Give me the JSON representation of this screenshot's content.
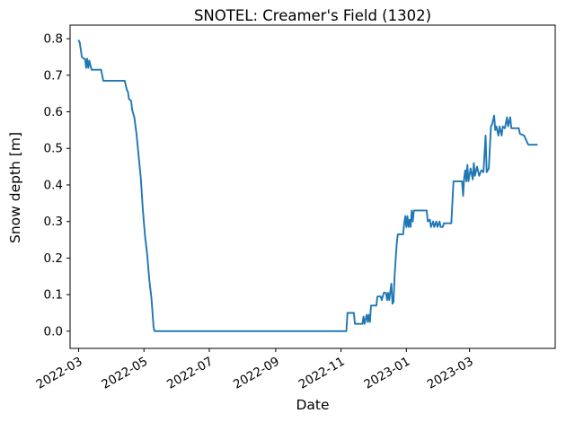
{
  "chart_data": {
    "type": "line",
    "title": "SNOTEL: Creamer's Field (1302)",
    "xlabel": "Date",
    "ylabel": "Snow depth [m]",
    "line_color": "#1f77b4",
    "background_color": "#ffffff",
    "grid": false,
    "legend": "none",
    "ylim": [
      -0.047,
      0.837
    ],
    "xlim": [
      "2022-02-21",
      "2023-05-20"
    ],
    "y_ticks": [
      {
        "value": 0.0,
        "label": "0.0"
      },
      {
        "value": 0.1,
        "label": "0.1"
      },
      {
        "value": 0.2,
        "label": "0.2"
      },
      {
        "value": 0.3,
        "label": "0.3"
      },
      {
        "value": 0.4,
        "label": "0.4"
      },
      {
        "value": 0.5,
        "label": "0.5"
      },
      {
        "value": 0.6,
        "label": "0.6"
      },
      {
        "value": 0.7,
        "label": "0.7"
      },
      {
        "value": 0.8,
        "label": "0.8"
      }
    ],
    "x_ticks": [
      {
        "date": "2022-03-01",
        "label": "2022-03"
      },
      {
        "date": "2022-05-01",
        "label": "2022-05"
      },
      {
        "date": "2022-07-01",
        "label": "2022-07"
      },
      {
        "date": "2022-09-01",
        "label": "2022-09"
      },
      {
        "date": "2022-11-01",
        "label": "2022-11"
      },
      {
        "date": "2023-01-01",
        "label": "2023-01"
      },
      {
        "date": "2023-03-01",
        "label": "2023-03"
      }
    ],
    "series": [
      {
        "name": "Snow depth",
        "points": [
          [
            "2022-03-01",
            0.795
          ],
          [
            "2022-03-02",
            0.79
          ],
          [
            "2022-03-04",
            0.75
          ],
          [
            "2022-03-06",
            0.745
          ],
          [
            "2022-03-07",
            0.745
          ],
          [
            "2022-03-08",
            0.72
          ],
          [
            "2022-03-09",
            0.745
          ],
          [
            "2022-03-10",
            0.72
          ],
          [
            "2022-03-11",
            0.74
          ],
          [
            "2022-03-13",
            0.715
          ],
          [
            "2022-03-22",
            0.715
          ],
          [
            "2022-03-24",
            0.685
          ],
          [
            "2022-04-13",
            0.685
          ],
          [
            "2022-04-15",
            0.66
          ],
          [
            "2022-04-16",
            0.655
          ],
          [
            "2022-04-17",
            0.635
          ],
          [
            "2022-04-19",
            0.63
          ],
          [
            "2022-04-20",
            0.605
          ],
          [
            "2022-04-22",
            0.585
          ],
          [
            "2022-04-24",
            0.54
          ],
          [
            "2022-04-26",
            0.48
          ],
          [
            "2022-04-28",
            0.42
          ],
          [
            "2022-04-30",
            0.33
          ],
          [
            "2022-05-02",
            0.26
          ],
          [
            "2022-05-04",
            0.21
          ],
          [
            "2022-05-06",
            0.14
          ],
          [
            "2022-05-08",
            0.09
          ],
          [
            "2022-05-10",
            0.01
          ],
          [
            "2022-05-11",
            0
          ],
          [
            "2022-11-06",
            0
          ],
          [
            "2022-11-07",
            0.05
          ],
          [
            "2022-11-13",
            0.05
          ],
          [
            "2022-11-14",
            0.02
          ],
          [
            "2022-11-21",
            0.02
          ],
          [
            "2022-11-22",
            0.04
          ],
          [
            "2022-11-23",
            0.02
          ],
          [
            "2022-11-25",
            0.045
          ],
          [
            "2022-11-26",
            0.025
          ],
          [
            "2022-11-27",
            0.045
          ],
          [
            "2022-11-28",
            0.025
          ],
          [
            "2022-11-29",
            0.07
          ],
          [
            "2022-12-04",
            0.07
          ],
          [
            "2022-12-05",
            0.095
          ],
          [
            "2022-12-08",
            0.095
          ],
          [
            "2022-12-09",
            0.085
          ],
          [
            "2022-12-11",
            0.105
          ],
          [
            "2022-12-13",
            0.105
          ],
          [
            "2022-12-14",
            0.085
          ],
          [
            "2022-12-15",
            0.105
          ],
          [
            "2022-12-16",
            0.085
          ],
          [
            "2022-12-18",
            0.13
          ],
          [
            "2022-12-19",
            0.075
          ],
          [
            "2022-12-20",
            0.08
          ],
          [
            "2022-12-21",
            0.15
          ],
          [
            "2022-12-23",
            0.24
          ],
          [
            "2022-12-24",
            0.265
          ],
          [
            "2022-12-29",
            0.265
          ],
          [
            "2022-12-30",
            0.295
          ],
          [
            "2022-12-31",
            0.315
          ],
          [
            "2023-01-01",
            0.285
          ],
          [
            "2023-01-02",
            0.315
          ],
          [
            "2023-01-03",
            0.285
          ],
          [
            "2023-01-04",
            0.305
          ],
          [
            "2023-01-05",
            0.285
          ],
          [
            "2023-01-06",
            0.33
          ],
          [
            "2023-01-07",
            0.3
          ],
          [
            "2023-01-08",
            0.33
          ],
          [
            "2023-01-10",
            0.33
          ],
          [
            "2023-01-20",
            0.33
          ],
          [
            "2023-01-21",
            0.3
          ],
          [
            "2023-01-23",
            0.305
          ],
          [
            "2023-01-24",
            0.285
          ],
          [
            "2023-01-26",
            0.3
          ],
          [
            "2023-01-27",
            0.285
          ],
          [
            "2023-01-29",
            0.3
          ],
          [
            "2023-01-30",
            0.285
          ],
          [
            "2023-02-01",
            0.3
          ],
          [
            "2023-02-02",
            0.285
          ],
          [
            "2023-02-04",
            0.285
          ],
          [
            "2023-02-05",
            0.295
          ],
          [
            "2023-02-12",
            0.295
          ],
          [
            "2023-02-14",
            0.41
          ],
          [
            "2023-02-22",
            0.41
          ],
          [
            "2023-02-23",
            0.37
          ],
          [
            "2023-02-24",
            0.42
          ],
          [
            "2023-02-25",
            0.44
          ],
          [
            "2023-02-26",
            0.41
          ],
          [
            "2023-02-27",
            0.455
          ],
          [
            "2023-02-28",
            0.41
          ],
          [
            "2023-03-02",
            0.445
          ],
          [
            "2023-03-04",
            0.415
          ],
          [
            "2023-03-05",
            0.46
          ],
          [
            "2023-03-06",
            0.425
          ],
          [
            "2023-03-08",
            0.45
          ],
          [
            "2023-03-10",
            0.425
          ],
          [
            "2023-03-12",
            0.44
          ],
          [
            "2023-03-14",
            0.435
          ],
          [
            "2023-03-16",
            0.535
          ],
          [
            "2023-03-17",
            0.435
          ],
          [
            "2023-03-19",
            0.445
          ],
          [
            "2023-03-21",
            0.56
          ],
          [
            "2023-03-22",
            0.565
          ],
          [
            "2023-03-24",
            0.59
          ],
          [
            "2023-03-25",
            0.55
          ],
          [
            "2023-03-26",
            0.56
          ],
          [
            "2023-03-28",
            0.535
          ],
          [
            "2023-03-29",
            0.56
          ],
          [
            "2023-03-31",
            0.535
          ],
          [
            "2023-04-01",
            0.56
          ],
          [
            "2023-04-03",
            0.555
          ],
          [
            "2023-04-05",
            0.585
          ],
          [
            "2023-04-06",
            0.56
          ],
          [
            "2023-04-08",
            0.585
          ],
          [
            "2023-04-09",
            0.555
          ],
          [
            "2023-04-11",
            0.555
          ],
          [
            "2023-04-16",
            0.555
          ],
          [
            "2023-04-17",
            0.54
          ],
          [
            "2023-04-21",
            0.535
          ],
          [
            "2023-04-24",
            0.515
          ],
          [
            "2023-04-25",
            0.51
          ],
          [
            "2023-05-03",
            0.51
          ]
        ]
      }
    ]
  }
}
